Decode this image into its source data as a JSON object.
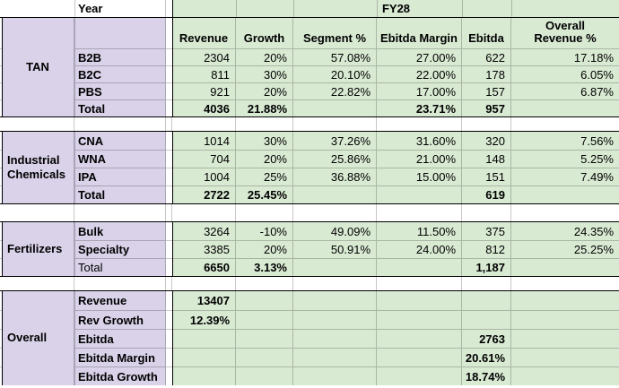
{
  "colors": {
    "lavender": "#d9d2e9",
    "green": "#d9ead3",
    "grid": "rgba(0,0,0,0.22)",
    "border": "#000000"
  },
  "top": {
    "year_label": "Year",
    "period_label": "FY28"
  },
  "columns": [
    "Revenue",
    "Growth",
    "Segment %",
    "Ebitda Margin",
    "Ebitda",
    "Overall\nRevenue %"
  ],
  "sections": [
    {
      "label": "TAN",
      "label_align": "center",
      "has_header": true,
      "rows": [
        {
          "name": "B2B",
          "name_bold": true,
          "values_bold": false,
          "values": [
            "2304",
            "20%",
            "57.08%",
            "27.00%",
            "622",
            "17.18%"
          ]
        },
        {
          "name": "B2C",
          "name_bold": true,
          "values_bold": false,
          "values": [
            "811",
            "30%",
            "20.10%",
            "22.00%",
            "178",
            "6.05%"
          ]
        },
        {
          "name": "PBS",
          "name_bold": true,
          "values_bold": false,
          "values": [
            "921",
            "20%",
            "22.82%",
            "17.00%",
            "157",
            "6.87%"
          ]
        },
        {
          "name": "Total",
          "name_bold": true,
          "values_bold": true,
          "values": [
            "4036",
            "21.88%",
            "",
            "23.71%",
            "957",
            ""
          ]
        }
      ]
    },
    {
      "label": "Industrial Chemicals",
      "label_align": "left",
      "has_header": false,
      "rows": [
        {
          "name": "CNA",
          "name_bold": true,
          "values_bold": false,
          "values": [
            "1014",
            "30%",
            "37.26%",
            "31.60%",
            "320",
            "7.56%"
          ]
        },
        {
          "name": "WNA",
          "name_bold": true,
          "values_bold": false,
          "values": [
            "704",
            "20%",
            "25.86%",
            "21.00%",
            "148",
            "5.25%"
          ]
        },
        {
          "name": "IPA",
          "name_bold": true,
          "values_bold": false,
          "values": [
            "1004",
            "25%",
            "36.88%",
            "15.00%",
            "151",
            "7.49%"
          ]
        },
        {
          "name": "Total",
          "name_bold": true,
          "values_bold": true,
          "values": [
            "2722",
            "25.45%",
            "",
            "",
            "619",
            ""
          ]
        }
      ]
    },
    {
      "label": "Fertilizers",
      "label_align": "left",
      "has_header": false,
      "rows": [
        {
          "name": "Bulk",
          "name_bold": true,
          "values_bold": false,
          "values": [
            "3264",
            "-10%",
            "49.09%",
            "11.50%",
            "375",
            "24.35%"
          ]
        },
        {
          "name": "Specialty",
          "name_bold": true,
          "values_bold": false,
          "values": [
            "3385",
            "20%",
            "50.91%",
            "24.00%",
            "812",
            "25.25%"
          ]
        },
        {
          "name": "Total",
          "name_bold": false,
          "values_bold": true,
          "values": [
            "6650",
            "3.13%",
            "",
            "",
            "1,187",
            ""
          ]
        }
      ]
    },
    {
      "label": "Overall",
      "label_align": "left",
      "has_header": false,
      "rows": [
        {
          "name": "Revenue",
          "name_bold": true,
          "values_bold": true,
          "values": [
            "13407",
            "",
            "",
            "",
            "",
            ""
          ]
        },
        {
          "name": "Rev Growth",
          "name_bold": true,
          "values_bold": true,
          "values": [
            "12.39%",
            "",
            "",
            "",
            "",
            ""
          ]
        },
        {
          "name": "Ebitda",
          "name_bold": true,
          "values_bold": true,
          "values": [
            "",
            "",
            "",
            "",
            "2763",
            ""
          ]
        },
        {
          "name": "Ebitda Margin",
          "name_bold": true,
          "values_bold": true,
          "values": [
            "",
            "",
            "",
            "",
            "20.61%",
            ""
          ]
        },
        {
          "name": "Ebitda Growth",
          "name_bold": true,
          "values_bold": true,
          "values": [
            "",
            "",
            "",
            "",
            "18.74%",
            ""
          ]
        }
      ]
    }
  ]
}
